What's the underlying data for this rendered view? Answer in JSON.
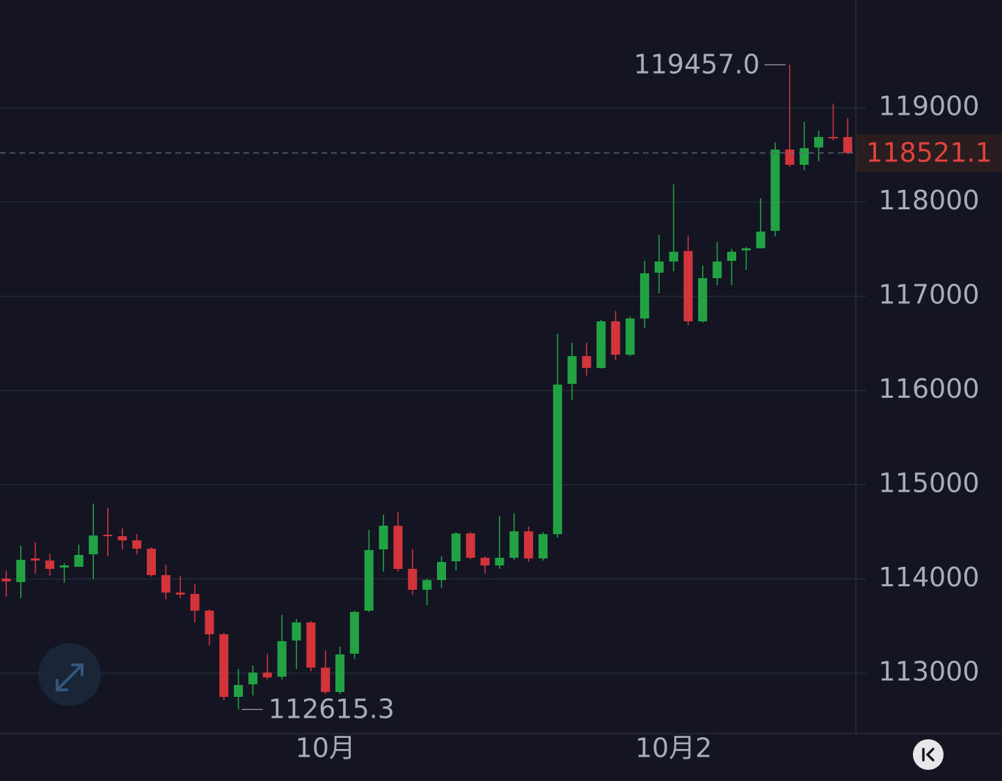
{
  "chart_data": {
    "type": "candlestick",
    "categories": [
      null,
      null,
      null,
      null,
      null,
      null,
      null,
      null,
      null,
      null,
      null,
      null,
      null,
      null,
      null,
      null,
      null,
      null,
      null,
      null,
      null,
      null,
      "10月",
      null,
      null,
      null,
      null,
      null,
      null,
      null,
      null,
      null,
      null,
      null,
      null,
      null,
      null,
      null,
      null,
      null,
      null,
      null,
      null,
      null,
      null,
      null,
      "10月2",
      null,
      null,
      null,
      null,
      null,
      null,
      null,
      null,
      null,
      null,
      null,
      null
    ],
    "open": [
      114004,
      113967,
      114218,
      114196,
      114122,
      114129,
      114262,
      114469,
      114454,
      114410,
      114321,
      114041,
      113856,
      113841,
      113664,
      113413,
      112749,
      112882,
      113007,
      112963,
      113347,
      113539,
      113059,
      112801,
      113207,
      113664,
      114314,
      114565,
      114107,
      113886,
      113989,
      114188,
      114483,
      114225,
      114144,
      114225,
      114506,
      114218,
      114476,
      116070,
      116365,
      116240,
      116734,
      116380,
      116764,
      117251,
      117369,
      117480,
      116734,
      117192,
      117376,
      117487,
      117509,
      117694,
      118557,
      118395,
      118579,
      118690,
      118690
    ],
    "high": [
      114092,
      114351,
      114388,
      114269,
      114166,
      114365,
      114801,
      114757,
      114535,
      114476,
      114336,
      114151,
      114033,
      113945,
      113679,
      113428,
      113044,
      113081,
      113207,
      113620,
      113576,
      113554,
      113244,
      113281,
      113664,
      114520,
      114683,
      114712,
      114314,
      114004,
      114240,
      114498,
      114498,
      114240,
      114668,
      114697,
      114557,
      114498,
      116602,
      116506,
      116506,
      116749,
      116845,
      116786,
      117376,
      117650,
      118188,
      117642,
      117325,
      117576,
      117502,
      117524,
      118041,
      118631,
      119457.0,
      118852,
      118757,
      119044,
      118889
    ],
    "low": [
      113812,
      113797,
      114055,
      114033,
      113960,
      114129,
      113996,
      114240,
      114314,
      114262,
      114026,
      113782,
      113797,
      113539,
      113295,
      112712,
      112615.3,
      112764,
      112934,
      112934,
      113044,
      113022,
      112779,
      112779,
      113148,
      113650,
      114078,
      114078,
      113834,
      113723,
      113908,
      114092,
      114210,
      114055,
      114107,
      114203,
      114181,
      114196,
      114439,
      115900,
      116159,
      116233,
      116321,
      116365,
      116661,
      117030,
      117266,
      116690,
      116720,
      117118,
      117118,
      117281,
      117509,
      117635,
      118373,
      118336,
      118432,
      118653,
      118506
    ],
    "close": [
      113974,
      114203,
      114196,
      114107,
      114144,
      114255,
      114461,
      114454,
      114410,
      114321,
      114041,
      113856,
      113834,
      113664,
      113413,
      112749,
      112875,
      113007,
      112956,
      113340,
      113539,
      113059,
      112801,
      113199,
      113650,
      114306,
      114565,
      114107,
      113886,
      113989,
      114181,
      114483,
      114225,
      114144,
      114225,
      114506,
      114218,
      114476,
      116063,
      116365,
      116240,
      116734,
      116380,
      116764,
      117244,
      117369,
      117472,
      116734,
      117192,
      117369,
      117472,
      117509,
      117686,
      118557,
      118395,
      118572,
      118690,
      118675,
      118521.1
    ],
    "up_color": "#23a244",
    "down_color": "#d3343c",
    "ylim": [
      112358,
      120144
    ],
    "yticks": [
      113000,
      114000,
      115000,
      116000,
      117000,
      118000,
      119000
    ],
    "grid": true,
    "last_price": 118521.1,
    "annotations": [
      {
        "text": "119457.0",
        "value": 119457.0
      },
      {
        "text": "112615.3",
        "value": 112615.3
      }
    ]
  }
}
